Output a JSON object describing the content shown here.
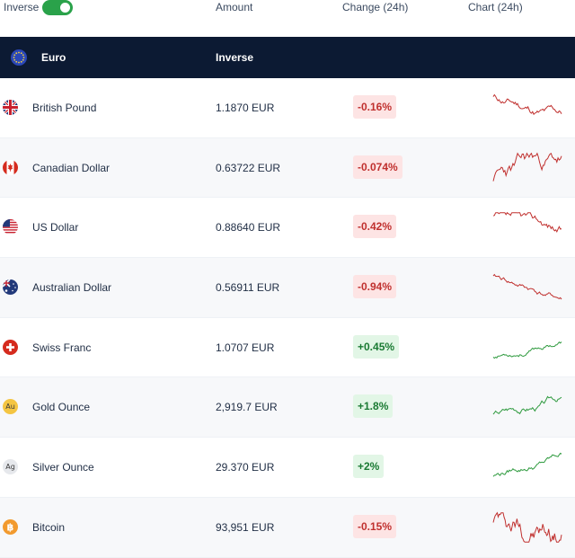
{
  "header": {
    "inverse_label": "Inverse",
    "toggle_on": true,
    "amount_label": "Amount",
    "change_label": "Change (24h)",
    "chart_label": "Chart (24h)"
  },
  "base": {
    "name": "Euro",
    "flag_icon": "eu-flag-icon",
    "inverse_button": "Inverse"
  },
  "colors": {
    "header_dark": "#0c1a33",
    "toggle_green": "#2aa24a",
    "negative": "#c0302e",
    "positive": "#2e9a3e"
  },
  "rows": [
    {
      "name": "British Pound",
      "amount": "1.1870 EUR",
      "change": "-0.16%",
      "direction": "down",
      "icon": "uk-flag-icon"
    },
    {
      "name": "Canadian Dollar",
      "amount": "0.63722 EUR",
      "change": "-0.074%",
      "direction": "down",
      "icon": "canada-flag-icon"
    },
    {
      "name": "US Dollar",
      "amount": "0.88640 EUR",
      "change": "-0.42%",
      "direction": "down",
      "icon": "us-flag-icon"
    },
    {
      "name": "Australian Dollar",
      "amount": "0.56911 EUR",
      "change": "-0.94%",
      "direction": "down",
      "icon": "australia-flag-icon"
    },
    {
      "name": "Swiss Franc",
      "amount": "1.0707 EUR",
      "change": "+0.45%",
      "direction": "up",
      "icon": "swiss-flag-icon"
    },
    {
      "name": "Gold Ounce",
      "amount": "2,919.7 EUR",
      "change": "+1.8%",
      "direction": "up",
      "icon": "gold-coin-icon",
      "coin_text": "Au"
    },
    {
      "name": "Silver Ounce",
      "amount": "29.370 EUR",
      "change": "+2%",
      "direction": "up",
      "icon": "silver-coin-icon",
      "coin_text": "Ag"
    },
    {
      "name": "Bitcoin",
      "amount": "93,951 EUR",
      "change": "-0.15%",
      "direction": "down",
      "icon": "bitcoin-icon"
    }
  ]
}
